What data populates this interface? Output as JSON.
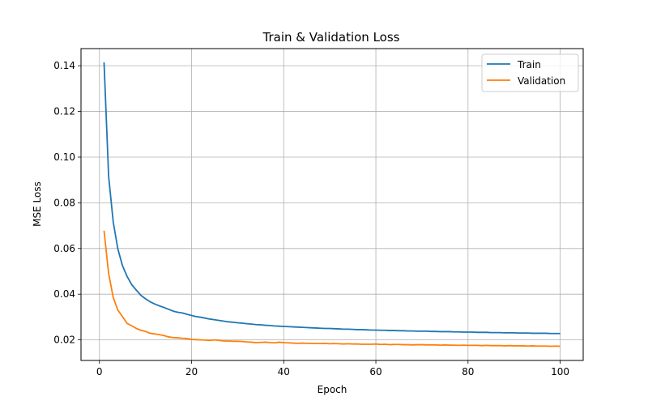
{
  "chart_data": {
    "type": "line",
    "title": "Train & Validation Loss",
    "xlabel": "Epoch",
    "ylabel": "MSE Loss",
    "xlim": [
      -4.0,
      105.0
    ],
    "ylim": [
      0.011,
      0.1475
    ],
    "xticks": [
      0,
      20,
      40,
      60,
      80,
      100
    ],
    "yticks": [
      0.02,
      0.04,
      0.06,
      0.08,
      0.1,
      0.12,
      0.14
    ],
    "ytick_labels": [
      "0.02",
      "0.04",
      "0.06",
      "0.08",
      "0.10",
      "0.12",
      "0.14"
    ],
    "grid": true,
    "legend_position": "top-right",
    "series": [
      {
        "name": "Train",
        "color": "#1f77b4",
        "x": [
          1,
          2,
          3,
          4,
          5,
          6,
          7,
          8,
          9,
          10,
          11,
          12,
          13,
          14,
          15,
          16,
          17,
          18,
          19,
          20,
          21,
          22,
          23,
          24,
          25,
          26,
          27,
          28,
          29,
          30,
          31,
          32,
          33,
          34,
          35,
          36,
          37,
          38,
          39,
          40,
          41,
          42,
          43,
          44,
          45,
          46,
          47,
          48,
          49,
          50,
          51,
          52,
          53,
          54,
          55,
          56,
          57,
          58,
          59,
          60,
          61,
          62,
          63,
          64,
          65,
          66,
          67,
          68,
          69,
          70,
          71,
          72,
          73,
          74,
          75,
          76,
          77,
          78,
          79,
          80,
          81,
          82,
          83,
          84,
          85,
          86,
          87,
          88,
          89,
          90,
          91,
          92,
          93,
          94,
          95,
          96,
          97,
          98,
          99,
          100
        ],
        "values": [
          0.1415,
          0.0915,
          0.0715,
          0.0598,
          0.0525,
          0.0478,
          0.0442,
          0.0418,
          0.0395,
          0.038,
          0.0367,
          0.0357,
          0.0349,
          0.0342,
          0.0334,
          0.0326,
          0.0321,
          0.0318,
          0.0312,
          0.0307,
          0.0302,
          0.0299,
          0.0295,
          0.0291,
          0.0288,
          0.0285,
          0.0282,
          0.0279,
          0.0277,
          0.0275,
          0.0273,
          0.0271,
          0.0269,
          0.0267,
          0.0266,
          0.0264,
          0.0263,
          0.0261,
          0.026,
          0.0259,
          0.0258,
          0.0257,
          0.0256,
          0.0255,
          0.0254,
          0.0253,
          0.0252,
          0.0251,
          0.025,
          0.025,
          0.0249,
          0.0248,
          0.0247,
          0.0247,
          0.0246,
          0.0245,
          0.0245,
          0.0244,
          0.0243,
          0.0243,
          0.0242,
          0.0242,
          0.0241,
          0.0241,
          0.024,
          0.024,
          0.0239,
          0.0239,
          0.0238,
          0.0238,
          0.0238,
          0.0237,
          0.0237,
          0.0236,
          0.0236,
          0.0236,
          0.0235,
          0.0235,
          0.0234,
          0.0234,
          0.0234,
          0.0233,
          0.0233,
          0.0233,
          0.0232,
          0.0232,
          0.0232,
          0.0231,
          0.0231,
          0.0231,
          0.023,
          0.023,
          0.023,
          0.0229,
          0.0229,
          0.0229,
          0.0229,
          0.0228,
          0.0228,
          0.0228
        ]
      },
      {
        "name": "Validation",
        "color": "#ff7f0e",
        "x": [
          1,
          2,
          3,
          4,
          5,
          6,
          7,
          8,
          9,
          10,
          11,
          12,
          13,
          14,
          15,
          16,
          17,
          18,
          19,
          20,
          21,
          22,
          23,
          24,
          25,
          26,
          27,
          28,
          29,
          30,
          31,
          32,
          33,
          34,
          35,
          36,
          37,
          38,
          39,
          40,
          41,
          42,
          43,
          44,
          45,
          46,
          47,
          48,
          49,
          50,
          51,
          52,
          53,
          54,
          55,
          56,
          57,
          58,
          59,
          60,
          61,
          62,
          63,
          64,
          65,
          66,
          67,
          68,
          69,
          70,
          71,
          72,
          73,
          74,
          75,
          76,
          77,
          78,
          79,
          80,
          81,
          82,
          83,
          84,
          85,
          86,
          87,
          88,
          89,
          90,
          91,
          92,
          93,
          94,
          95,
          96,
          97,
          98,
          99,
          100
        ],
        "values": [
          0.0678,
          0.049,
          0.0385,
          0.033,
          0.0302,
          0.0272,
          0.0262,
          0.025,
          0.0242,
          0.0237,
          0.0229,
          0.0226,
          0.0223,
          0.0219,
          0.0213,
          0.021,
          0.0209,
          0.0207,
          0.0206,
          0.0202,
          0.0201,
          0.02,
          0.0199,
          0.0198,
          0.02,
          0.0198,
          0.0195,
          0.0195,
          0.0194,
          0.0194,
          0.0193,
          0.0191,
          0.019,
          0.0188,
          0.0189,
          0.019,
          0.0188,
          0.0187,
          0.019,
          0.0188,
          0.0187,
          0.0186,
          0.0185,
          0.0186,
          0.0185,
          0.0185,
          0.0184,
          0.0184,
          0.0185,
          0.0183,
          0.0184,
          0.0183,
          0.0182,
          0.0183,
          0.0182,
          0.0182,
          0.0181,
          0.0181,
          0.0181,
          0.0182,
          0.018,
          0.0181,
          0.0179,
          0.018,
          0.018,
          0.0179,
          0.0179,
          0.0178,
          0.0179,
          0.0179,
          0.0178,
          0.0178,
          0.0178,
          0.0177,
          0.0178,
          0.0177,
          0.0177,
          0.0176,
          0.0177,
          0.0176,
          0.0176,
          0.0176,
          0.0175,
          0.0176,
          0.0175,
          0.0175,
          0.0175,
          0.0174,
          0.0175,
          0.0174,
          0.0174,
          0.0174,
          0.0173,
          0.0174,
          0.0173,
          0.0173,
          0.0173,
          0.0172,
          0.0173,
          0.0172
        ]
      }
    ]
  }
}
